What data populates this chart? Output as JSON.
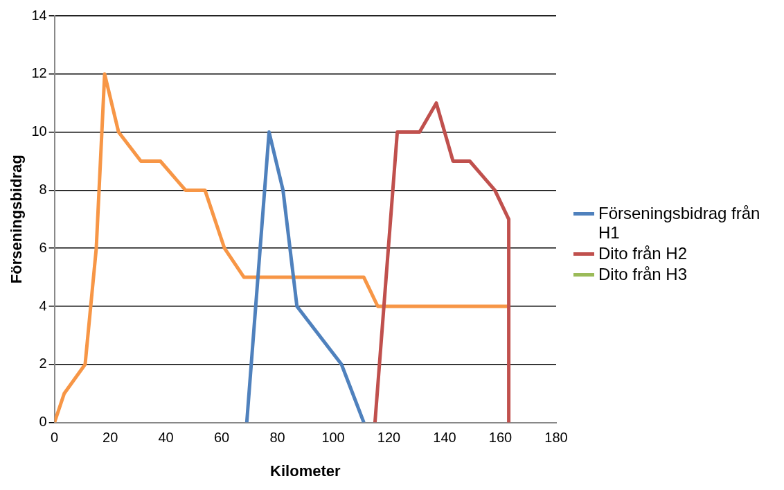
{
  "chart_data": {
    "type": "line",
    "xlabel": "Kilometer",
    "ylabel": "Förseningsbidrag",
    "series": [
      {
        "name": "Förseningsbidrag från H1",
        "color": "#4f81bd",
        "x": [
          69,
          77,
          82,
          87,
          103,
          111
        ],
        "values": [
          0,
          10,
          8,
          4,
          2,
          0
        ]
      },
      {
        "name": "Dito från H2",
        "color": "#c0504d",
        "x": [
          115,
          123,
          131,
          137,
          143,
          149,
          158,
          163,
          163
        ],
        "values": [
          0,
          10,
          10,
          11,
          9,
          9,
          8,
          7,
          0
        ]
      },
      {
        "name": "Dito från H3",
        "color": "#9bbb59"
      },
      {
        "color": "#f79646",
        "x": [
          0,
          3.5,
          11,
          15,
          18,
          23,
          31,
          38,
          47,
          54,
          61,
          68,
          111,
          116,
          163
        ],
        "values": [
          0,
          1,
          2,
          6,
          12,
          10,
          9,
          9,
          8,
          8,
          6,
          5,
          5,
          4,
          4
        ]
      }
    ],
    "xlim": [
      0,
      180
    ],
    "xticks": [
      0,
      20,
      40,
      60,
      80,
      100,
      120,
      140,
      160,
      180
    ],
    "ylim": [
      0,
      14
    ],
    "yticks": [
      0,
      2,
      4,
      6,
      8,
      10,
      12,
      14
    ],
    "grid": "y",
    "legend": "right",
    "marker": "none",
    "line_style": "solid"
  }
}
